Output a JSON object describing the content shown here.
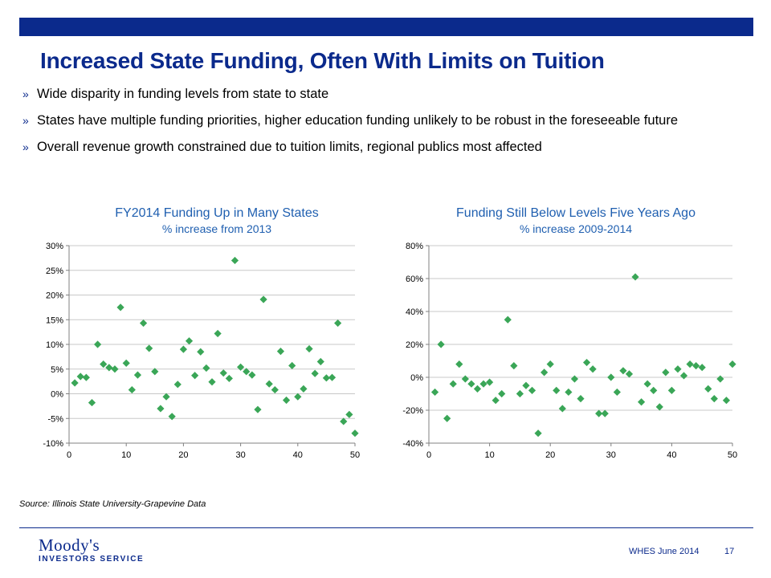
{
  "title": "Increased State Funding, Often With Limits on Tuition",
  "bullets": [
    "Wide disparity in funding levels from state to state",
    "States have multiple funding priorities, higher education funding unlikely to be robust in the foreseeable future",
    "Overall revenue growth constrained due to tuition limits, regional publics most affected"
  ],
  "bullet_marker": "»",
  "colors": {
    "brand": "#0b2a8c",
    "chart_title": "#1f5fb0",
    "marker": "#3aa657"
  },
  "source": "Source: Illinois State University-Grapevine  Data",
  "footer": {
    "logo": "Moody's",
    "logo_sub": "INVESTORS SERVICE",
    "event": "WHES June 2014",
    "page": "17"
  },
  "chart_data": [
    {
      "type": "scatter",
      "title": "FY2014 Funding Up in Many States",
      "subtitle": "% increase from 2013",
      "marker": "diamond",
      "xlim": [
        0,
        50
      ],
      "ylim": [
        -10,
        30
      ],
      "x_ticks": [
        0,
        10,
        20,
        30,
        40,
        50
      ],
      "x_tick_labels": [
        "0",
        "10",
        "20",
        "30",
        "40",
        "50"
      ],
      "y_ticks": [
        30,
        25,
        20,
        15,
        10,
        5,
        0,
        -5,
        -10
      ],
      "y_tick_labels": [
        "30%",
        "25%",
        "20%",
        "15%",
        "10%",
        "5%",
        "0%",
        "-5%",
        "-10%"
      ],
      "grid": "horizontal",
      "x": [
        1,
        2,
        3,
        4,
        5,
        6,
        7,
        8,
        9,
        10,
        11,
        12,
        13,
        14,
        15,
        16,
        17,
        18,
        19,
        20,
        21,
        22,
        23,
        24,
        25,
        26,
        27,
        28,
        29,
        30,
        31,
        32,
        33,
        34,
        35,
        36,
        37,
        38,
        39,
        40,
        41,
        42,
        43,
        44,
        45,
        46,
        47,
        48,
        49,
        50
      ],
      "y": [
        2.2,
        3.5,
        3.3,
        -1.8,
        10.0,
        6.0,
        5.3,
        5.0,
        17.5,
        6.2,
        0.8,
        3.8,
        14.3,
        9.2,
        4.5,
        -3.0,
        -0.6,
        -4.6,
        1.9,
        9.0,
        10.7,
        3.7,
        8.5,
        5.2,
        2.4,
        12.2,
        4.2,
        3.1,
        27.0,
        5.4,
        4.5,
        3.8,
        -3.2,
        19.1,
        2.0,
        0.8,
        8.6,
        -1.3,
        5.7,
        -0.6,
        1.0,
        9.1,
        4.1,
        6.5,
        3.2,
        3.3,
        14.3,
        -5.6,
        -4.2,
        -8.0
      ]
    },
    {
      "type": "scatter",
      "title": "Funding Still Below Levels Five Years Ago",
      "subtitle": "% increase 2009-2014",
      "marker": "diamond",
      "xlim": [
        0,
        50
      ],
      "ylim": [
        -40,
        80
      ],
      "x_ticks": [
        0,
        10,
        20,
        30,
        40,
        50
      ],
      "x_tick_labels": [
        "0",
        "10",
        "20",
        "30",
        "40",
        "50"
      ],
      "y_ticks": [
        80,
        60,
        40,
        20,
        0,
        -20,
        -40
      ],
      "y_tick_labels": [
        "80%",
        "60%",
        "40%",
        "20%",
        "0%",
        "-20%",
        "-40%"
      ],
      "grid": "horizontal",
      "x": [
        1,
        2,
        3,
        4,
        5,
        6,
        7,
        8,
        9,
        10,
        11,
        12,
        13,
        14,
        15,
        16,
        17,
        18,
        19,
        20,
        21,
        22,
        23,
        24,
        25,
        26,
        27,
        28,
        29,
        30,
        31,
        32,
        33,
        34,
        35,
        36,
        37,
        38,
        39,
        40,
        41,
        42,
        43,
        44,
        45,
        46,
        47,
        48,
        49,
        50
      ],
      "y": [
        -9,
        20,
        -25,
        -4,
        8,
        -1,
        -4,
        -7,
        -4,
        -3,
        -14,
        -10,
        35,
        7,
        -10,
        -5,
        -8,
        -34,
        3,
        8,
        -8,
        -19,
        -9,
        -1,
        -13,
        9,
        5,
        -22,
        -22,
        0,
        -9,
        4,
        2,
        61,
        -15,
        -4,
        -8,
        -18,
        3,
        -8,
        5,
        1,
        8,
        7,
        6,
        -7,
        -13,
        -1,
        -14,
        8
      ]
    }
  ]
}
